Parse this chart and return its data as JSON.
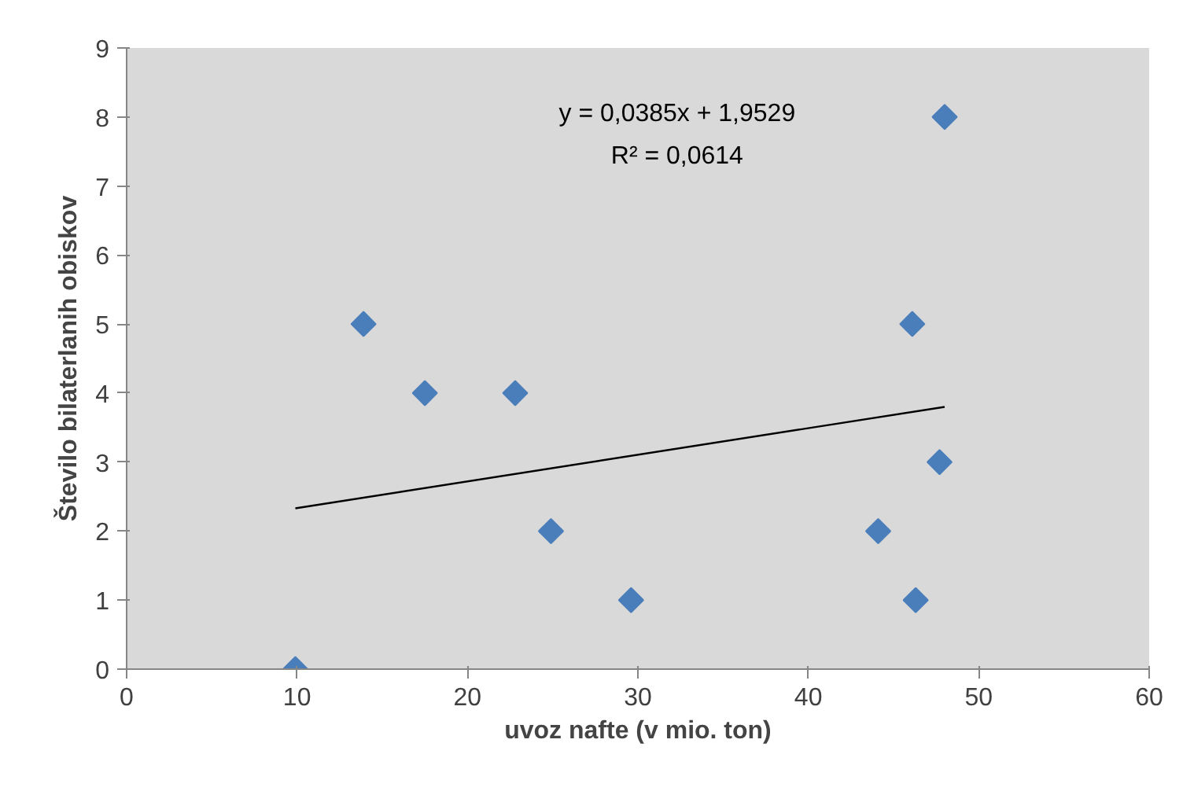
{
  "chart_data": {
    "type": "scatter",
    "xlabel": "uvoz nafte (v mio. ton)",
    "ylabel": "Število bilaterlanih obiskov",
    "annotations": [
      "y = 0,0385x + 1,9529",
      "R² = 0,0614"
    ],
    "xlim": [
      0,
      60
    ],
    "ylim": [
      0,
      9
    ],
    "xticks": [
      0,
      10,
      20,
      30,
      40,
      50,
      60
    ],
    "yticks": [
      0,
      1,
      2,
      3,
      4,
      5,
      6,
      7,
      8,
      9
    ],
    "grid": false,
    "marker": "diamond",
    "series": [
      {
        "color": "#4a7ebb",
        "x": [
          9.9,
          13.9,
          17.5,
          22.8,
          24.9,
          29.6,
          44.1,
          46.1,
          46.3,
          47.7,
          48.0
        ],
        "values": [
          0,
          5,
          4,
          4,
          2,
          1,
          2,
          5,
          1,
          3,
          8
        ]
      },
      {
        "type": "line",
        "color": "#000000",
        "line_style": "solid",
        "marker": "none",
        "x": [
          9.9,
          48.0
        ],
        "values": [
          2.33,
          3.8
        ]
      }
    ]
  }
}
